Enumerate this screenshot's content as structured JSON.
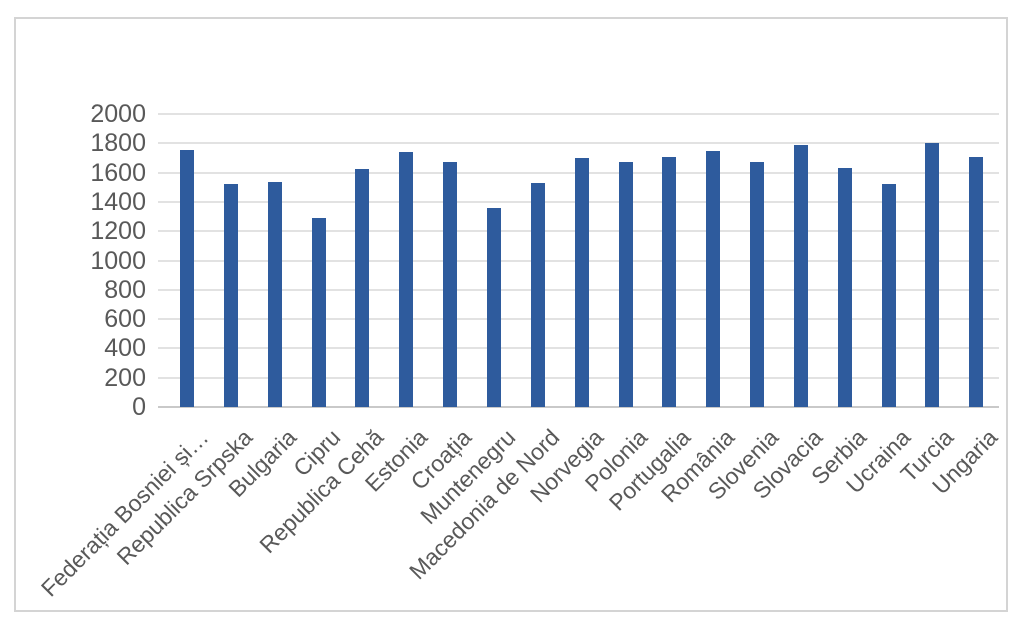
{
  "chart": {
    "background_color": "#ffffff",
    "frame_border_color": "#d4d4d4"
  },
  "chart_data": {
    "type": "bar",
    "title": "",
    "xlabel": "",
    "ylabel": "",
    "legend": "none",
    "grid": true,
    "ylim": [
      0,
      2000
    ],
    "ytick_step": 200,
    "y_tick_labels": [
      "0",
      "200",
      "400",
      "600",
      "800",
      "1000",
      "1200",
      "1400",
      "1600",
      "1800",
      "2000"
    ],
    "categories": [
      "Federația Bosniei și…",
      "Republica Srpska",
      "Bulgaria",
      "Cipru",
      "Republica Cehă",
      "Estonia",
      "Croația",
      "Muntenegru",
      "Macedonia de Nord",
      "Norvegia",
      "Polonia",
      "Portugalia",
      "România",
      "Slovenia",
      "Slovacia",
      "Serbia",
      "Ucraina",
      "Turcia",
      "Ungaria"
    ],
    "values": [
      1755,
      1520,
      1535,
      1290,
      1625,
      1740,
      1670,
      1360,
      1530,
      1700,
      1675,
      1705,
      1750,
      1675,
      1790,
      1630,
      1520,
      1805,
      1705
    ],
    "bar_color": "#2e5b9d",
    "gridline_color": "#e2e2e2",
    "axis_line_color": "#c9c9c9",
    "tick_label_color": "#595959"
  }
}
